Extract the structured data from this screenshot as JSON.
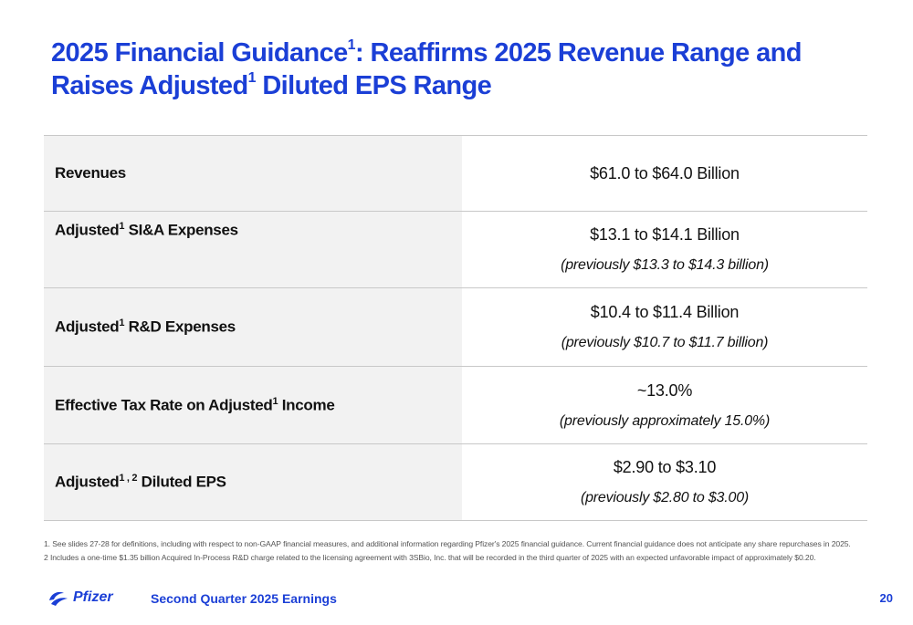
{
  "title": {
    "part1": "2025 Financial Guidance",
    "sup1": "1",
    "part2": ": Reaffirms 2025 Revenue Range and Raises Adjusted",
    "sup2": "1",
    "part3": " Diluted EPS Range"
  },
  "rows": [
    {
      "label": "Revenues",
      "label_sup": "",
      "label_after": "",
      "value": "$61.0 to $64.0 Billion",
      "previous": ""
    },
    {
      "label": "Adjusted",
      "label_sup": "1",
      "label_after": " SI&A Expenses",
      "value": "$13.1 to $14.1 Billion",
      "previous": "(previously $13.3 to $14.3 billion)"
    },
    {
      "label": "Adjusted",
      "label_sup": "1",
      "label_after": " R&D Expenses",
      "value": "$10.4 to $11.4 Billion",
      "previous": "(previously $10.7 to $11.7 billion)"
    },
    {
      "label": "Effective Tax Rate on Adjusted",
      "label_sup": "1",
      "label_after": " Income",
      "value": "~13.0%",
      "previous": "(previously approximately 15.0%)"
    },
    {
      "label": "Adjusted",
      "label_sup": "1 , 2",
      "label_after": " Diluted EPS",
      "value": "$2.90 to $3.10",
      "previous": "(previously $2.80 to $3.00)"
    }
  ],
  "footnotes": [
    "1. See slides 27-28 for definitions, including with respect to non-GAAP financial measures, and additional information regarding Pfizer's 2025 financial guidance. Current financial guidance does not anticipate any share repurchases in 2025.",
    "2 Includes a one-time $1.35 billion Acquired In-Process R&D charge related to the licensing agreement with 3SBio, Inc. that will be recorded in the third quarter of 2025 with an expected unfavorable impact of approximately $0.20."
  ],
  "footer": {
    "logo_text": "Pfizer",
    "title": "Second Quarter 2025 Earnings",
    "page_number": "20"
  },
  "colors": {
    "brand": "#1b3fd6",
    "label_bg": "#f2f2f2",
    "rule": "#c8c8c8"
  }
}
